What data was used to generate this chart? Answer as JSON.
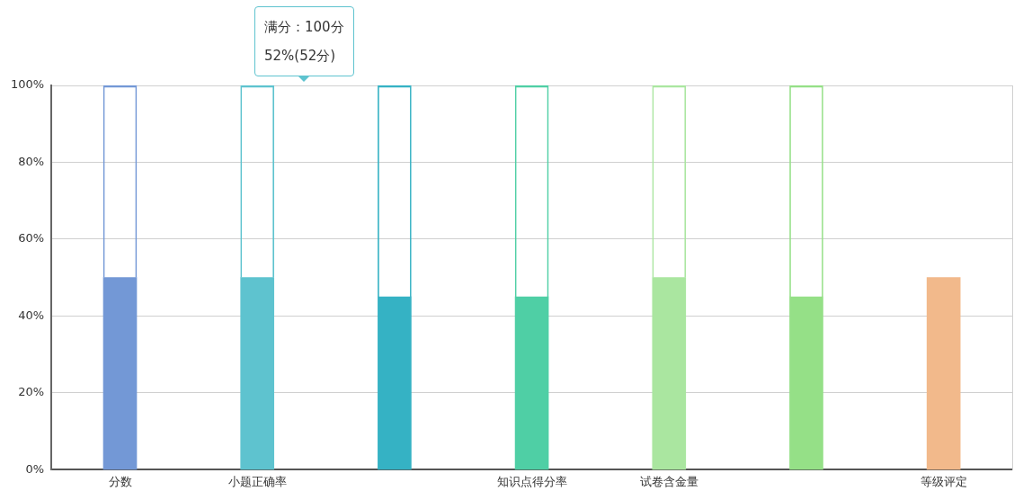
{
  "chart_data": {
    "type": "bar",
    "stacked": true,
    "categories": [
      "分数",
      "小题正确率",
      null,
      "知识点得分率",
      "试卷含金量",
      null,
      "等级评定"
    ],
    "series": [
      {
        "colors": [
          "#7398d6",
          "#5ec3cf",
          "#35b2c4",
          "#4fcfa5",
          "#aae6a0",
          "#95e087",
          "#f2b98b"
        ],
        "values": [
          50,
          50,
          45,
          45,
          50,
          45,
          50
        ]
      },
      {
        "colors": [
          "#7398d6",
          "#5ec3cf",
          "#35b2c4",
          "#4fcfa5",
          "#aae6a0",
          "#95e087",
          null
        ],
        "values": [
          50,
          50,
          55,
          55,
          50,
          55,
          null
        ]
      }
    ],
    "ylim": [
      0,
      100
    ],
    "yticks": [
      {
        "value": 0,
        "label": "0%"
      },
      {
        "value": 20,
        "label": "20%"
      },
      {
        "value": 40,
        "label": "40%"
      },
      {
        "value": 60,
        "label": "60%"
      },
      {
        "value": 80,
        "label": "80%"
      },
      {
        "value": 100,
        "label": "100%"
      }
    ],
    "grid": "y",
    "legend": false,
    "annotations": [
      "满分：100分",
      "52%(52分)"
    ]
  }
}
